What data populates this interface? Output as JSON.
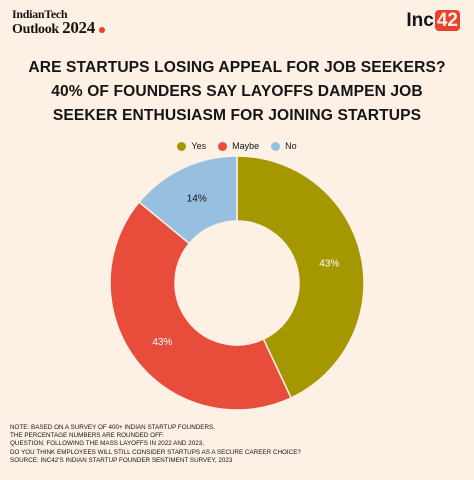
{
  "header": {
    "brand_left_line1": "IndianTech",
    "brand_left_line2": "Outlook",
    "brand_left_year": "2024",
    "brand_right_text": "Inc",
    "brand_right_num": "42"
  },
  "title_lines": [
    "ARE STARTUPS LOSING APPEAL FOR JOB SEEKERS?",
    "40% OF FOUNDERS SAY LAYOFFS DAMPEN JOB",
    "SEEKER ENTHUSIASM FOR JOINING STARTUPS"
  ],
  "notes": [
    "NOTE: BASED ON A SURVEY OF 400+ INDIAN STARTUP FOUNDERS.",
    "THE PERCENTAGE NUMBERS ARE ROUNDED OFF.",
    "QUESTION: FOLLOWING THE MASS LAYOFFS IN 2022 AND 2023,",
    "DO YOU THINK EMPLOYEES WILL STILL CONSIDER STARTUPS AS A SECURE CAREER CHOICE?",
    "SOURCE: INC42'S INDIAN STARTUP FOUNDER SENTIMENT SURVEY, 2023"
  ],
  "colors": {
    "background": "#fdf0e4",
    "accent": "#e8412c"
  },
  "chart_data": {
    "type": "pie",
    "donut": true,
    "title": "ARE STARTUPS LOSING APPEAL FOR JOB SEEKERS? 40% OF FOUNDERS SAY LAYOFFS DAMPEN JOB SEEKER ENTHUSIASM FOR JOINING STARTUPS",
    "legend_position": "top",
    "categories": [
      "Yes",
      "Maybe",
      "No"
    ],
    "values": [
      43,
      43,
      14
    ],
    "labels": [
      "43%",
      "43%",
      "14%"
    ],
    "colors": [
      "#a49700",
      "#e84c3b",
      "#97bfe0"
    ]
  }
}
